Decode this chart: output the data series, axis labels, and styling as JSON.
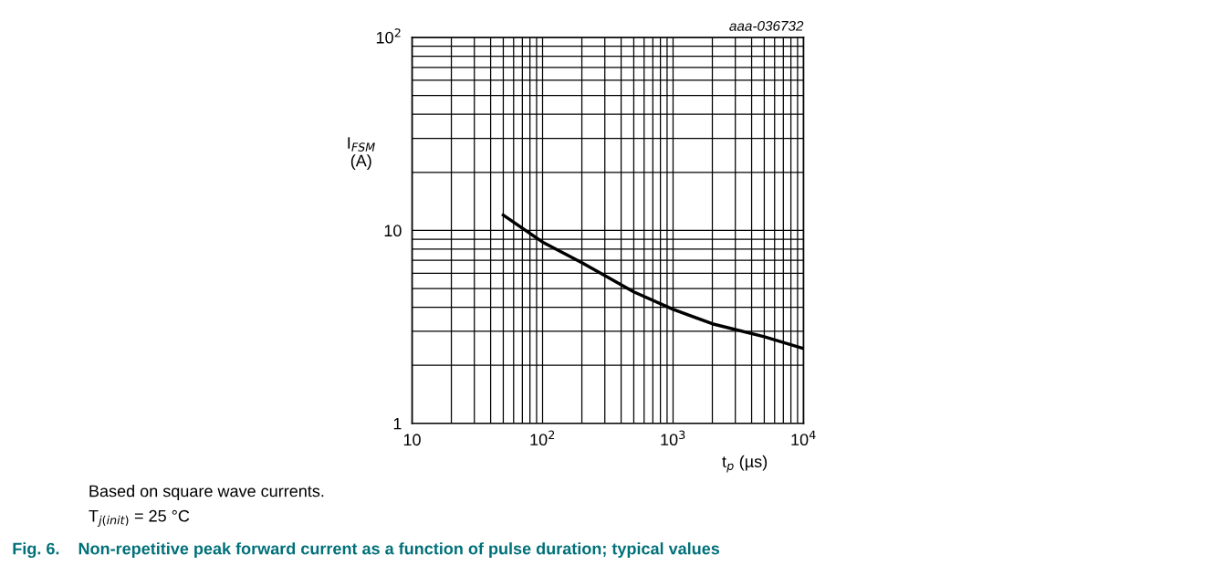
{
  "chart_data": {
    "type": "line",
    "title": "Fig. 6.    Non-repetitive peak forward current as a function of pulse duration; typical values",
    "xlabel": "t$_{p}$ (µs)",
    "ylabel": "I$_{FSM}$\n(A)",
    "x": [
      50,
      100,
      200,
      500,
      1000,
      2000,
      5000,
      10000
    ],
    "series": [
      {
        "color": "#000000",
        "values": [
          12,
          8.7,
          6.8,
          4.8,
          3.9,
          3.28,
          2.81,
          2.44
        ]
      }
    ],
    "log": "xy",
    "xlim": [
      10,
      10000
    ],
    "ylim": [
      1,
      100
    ],
    "xticks": [
      10,
      {
        "value": 100,
        "label": "10$^{2}$"
      },
      {
        "value": 1000,
        "label": "10$^{3}$"
      },
      {
        "value": 10000,
        "label": "10$^{4}$"
      }
    ],
    "yticks": [
      1,
      10,
      {
        "value": 100,
        "label": "10$^{2}$"
      }
    ],
    "grid": true,
    "marker": "none",
    "line_style": "solid",
    "annotations": [
      "aaa-036732",
      "Based on square wave currents.",
      "T$_{j(init)}$ = 25 °C"
    ]
  }
}
